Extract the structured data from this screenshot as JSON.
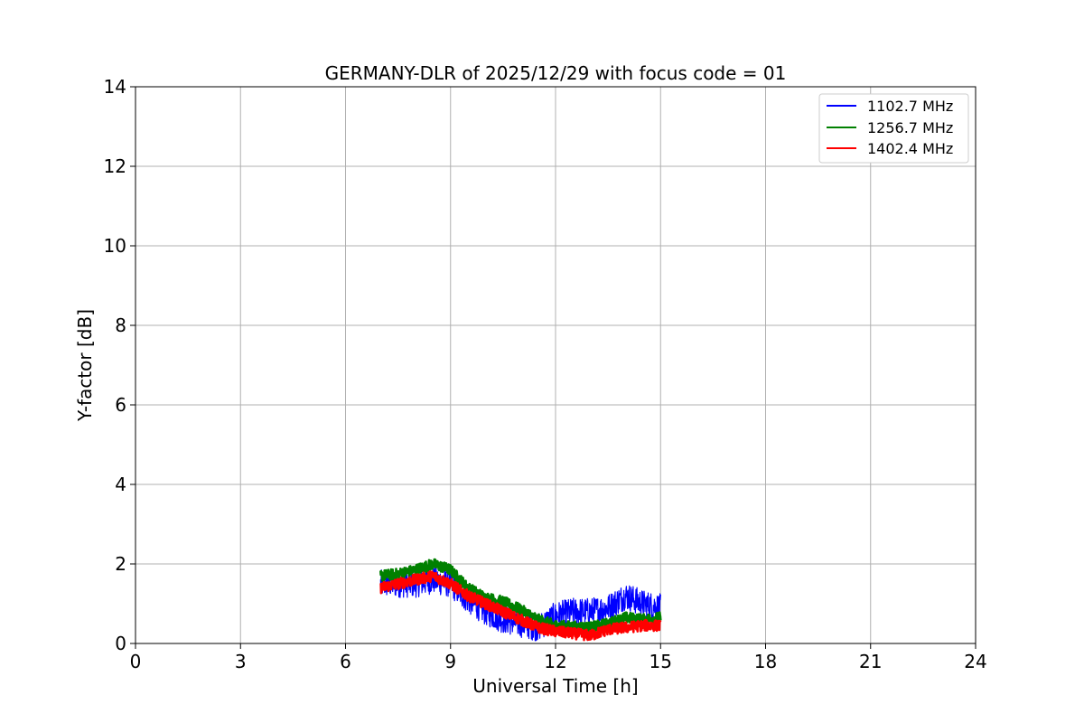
{
  "chart_data": {
    "type": "line",
    "title": "GERMANY-DLR of 2025/12/29 with focus code = 01",
    "xlabel": "Universal Time [h]",
    "ylabel": "Y-factor [dB]",
    "xlim": [
      0,
      24
    ],
    "ylim": [
      0,
      14
    ],
    "xticks": [
      0,
      3,
      6,
      9,
      12,
      15,
      18,
      21,
      24
    ],
    "yticks": [
      0,
      2,
      4,
      6,
      8,
      10,
      12,
      14
    ],
    "grid": true,
    "legend_position": "top-right",
    "series": [
      {
        "name": "1102.7 MHz",
        "color": "#0000ff",
        "x": [
          7.0,
          7.5,
          8.0,
          8.5,
          9.0,
          9.5,
          10.0,
          10.5,
          11.0,
          11.5,
          12.0,
          12.5,
          13.0,
          13.5,
          14.0,
          14.5,
          15.0
        ],
        "y": [
          1.5,
          1.5,
          1.5,
          1.6,
          1.5,
          1.1,
          0.8,
          0.6,
          0.5,
          0.4,
          0.7,
          0.8,
          0.8,
          0.9,
          1.2,
          1.0,
          0.9
        ],
        "noise": 0.35
      },
      {
        "name": "1256.7 MHz",
        "color": "#008000",
        "x": [
          7.0,
          7.5,
          8.0,
          8.5,
          9.0,
          9.5,
          10.0,
          10.5,
          11.0,
          11.5,
          12.0,
          12.5,
          13.0,
          13.5,
          14.0,
          14.5,
          15.0
        ],
        "y": [
          1.7,
          1.75,
          1.85,
          2.0,
          1.85,
          1.4,
          1.15,
          1.05,
          0.85,
          0.6,
          0.45,
          0.42,
          0.4,
          0.5,
          0.65,
          0.6,
          0.65
        ],
        "noise": 0.14
      },
      {
        "name": "1402.4 MHz",
        "color": "#ff0000",
        "x": [
          7.0,
          7.5,
          8.0,
          8.5,
          9.0,
          9.5,
          10.0,
          10.5,
          11.0,
          11.5,
          12.0,
          12.5,
          13.0,
          13.5,
          14.0,
          14.5,
          15.0
        ],
        "y": [
          1.4,
          1.5,
          1.6,
          1.7,
          1.5,
          1.2,
          1.0,
          0.8,
          0.6,
          0.4,
          0.3,
          0.25,
          0.2,
          0.35,
          0.4,
          0.45,
          0.45
        ],
        "noise": 0.14
      }
    ]
  }
}
